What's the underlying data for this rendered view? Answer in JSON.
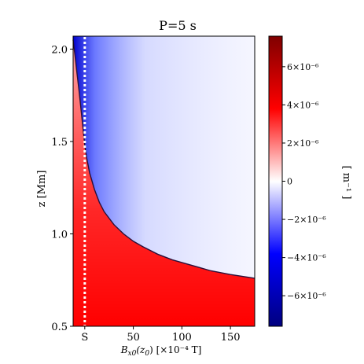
{
  "chart_data": {
    "type": "heatmap",
    "title": "P=5 s",
    "ylabel": "z [Mm]",
    "xlabel_parts": {
      "base": "B",
      "sub": "x0",
      "rest": "(z",
      "sub2": "0",
      "end": ") [×10⁻⁴ T]"
    },
    "xlim": [
      -12,
      175
    ],
    "ylim": [
      0.5,
      2.07
    ],
    "x_ticks": [
      {
        "value": 0,
        "label": "S"
      },
      {
        "value": 50,
        "label": "50"
      },
      {
        "value": 100,
        "label": "100"
      },
      {
        "value": 150,
        "label": "150"
      }
    ],
    "y_ticks": [
      {
        "value": 0.5,
        "label": "0.5"
      },
      {
        "value": 1.0,
        "label": "1.0"
      },
      {
        "value": 1.5,
        "label": "1.5"
      },
      {
        "value": 2.0,
        "label": "2.0"
      }
    ],
    "dotted_line_x": 0,
    "zero_contour": [
      [
        -12,
        2.05
      ],
      [
        -10,
        1.96
      ],
      [
        -8,
        1.87
      ],
      [
        -6,
        1.78
      ],
      [
        -4,
        1.68
      ],
      [
        -2,
        1.58
      ],
      [
        0,
        1.48
      ],
      [
        2,
        1.41
      ],
      [
        5,
        1.33
      ],
      [
        10,
        1.24
      ],
      [
        15,
        1.17
      ],
      [
        20,
        1.12
      ],
      [
        30,
        1.05
      ],
      [
        40,
        1.0
      ],
      [
        50,
        0.96
      ],
      [
        60,
        0.93
      ],
      [
        75,
        0.89
      ],
      [
        90,
        0.86
      ],
      [
        110,
        0.83
      ],
      [
        130,
        0.8
      ],
      [
        150,
        0.78
      ],
      [
        175,
        0.76
      ]
    ],
    "colorbar": {
      "label": "[ m⁻¹ ]",
      "min": -7.6e-06,
      "max": 7.6e-06,
      "ticks": [
        {
          "value": 6e-06,
          "label": "6×10⁻⁶"
        },
        {
          "value": 4e-06,
          "label": "4×10⁻⁶"
        },
        {
          "value": 2e-06,
          "label": "2×10⁻⁶"
        },
        {
          "value": 0,
          "label": "0"
        },
        {
          "value": -2e-06,
          "label": "−2×10⁻⁶"
        },
        {
          "value": -4e-06,
          "label": "−4×10⁻⁶"
        },
        {
          "value": -6e-06,
          "label": "−6×10⁻⁶"
        }
      ],
      "colors": [
        "#00007f",
        "#0000ff",
        "#ffffff",
        "#ff0000",
        "#7f0000"
      ]
    }
  }
}
